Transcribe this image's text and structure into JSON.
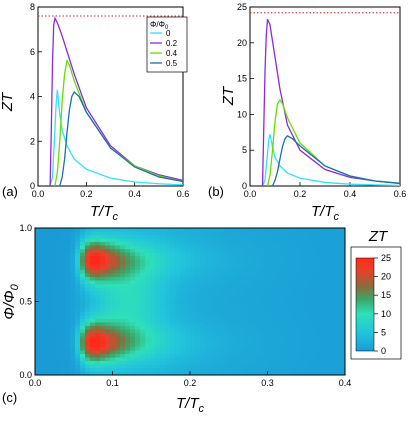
{
  "chart_data": [
    {
      "panel": "(a)",
      "type": "line",
      "ylabel": "ZT",
      "xlabel": "T/T",
      "xlabel_sub": "c",
      "xlim": [
        0,
        0.6
      ],
      "ylim": [
        0,
        8
      ],
      "xticks": [
        "0.0",
        "0.2",
        "0.4",
        "0.6"
      ],
      "yticks": [
        "0",
        "2",
        "4",
        "6",
        "8"
      ],
      "reference_line": {
        "y": 7.6,
        "color": "#d62728",
        "style": "dotted"
      },
      "legend": {
        "title": "Φ/Φ",
        "title_sub": "0",
        "placement": "top-right"
      },
      "series": [
        {
          "name": "0",
          "color": "#33e0ff",
          "x": [
            0.05,
            0.06,
            0.07,
            0.075,
            0.08,
            0.09,
            0.1,
            0.12,
            0.15,
            0.2,
            0.3,
            0.4,
            0.5,
            0.6
          ],
          "y": [
            0,
            0.4,
            2.5,
            3.7,
            4.3,
            3.2,
            2.5,
            1.8,
            1.2,
            0.75,
            0.35,
            0.18,
            0.1,
            0.05
          ]
        },
        {
          "name": "0.2",
          "color": "#8a2be2",
          "x": [
            0.05,
            0.055,
            0.06,
            0.065,
            0.07,
            0.08,
            0.1,
            0.15,
            0.2,
            0.3,
            0.4,
            0.5,
            0.6
          ],
          "y": [
            0,
            2.5,
            5.5,
            7.2,
            7.5,
            7.3,
            6.7,
            5.0,
            3.5,
            1.8,
            0.9,
            0.5,
            0.25
          ]
        },
        {
          "name": "0.4",
          "color": "#66dd00",
          "x": [
            0.07,
            0.08,
            0.09,
            0.1,
            0.11,
            0.12,
            0.13,
            0.15,
            0.2,
            0.3,
            0.4,
            0.5,
            0.6
          ],
          "y": [
            0,
            0.6,
            2.0,
            3.8,
            5.0,
            5.6,
            5.4,
            4.7,
            3.3,
            1.7,
            0.9,
            0.45,
            0.2
          ]
        },
        {
          "name": "0.5",
          "color": "#1a6fb0",
          "x": [
            0.09,
            0.1,
            0.11,
            0.12,
            0.13,
            0.14,
            0.15,
            0.17,
            0.2,
            0.3,
            0.4,
            0.5,
            0.6
          ],
          "y": [
            0,
            0.4,
            1.2,
            2.4,
            3.4,
            4.0,
            4.2,
            4.0,
            3.3,
            1.7,
            0.85,
            0.4,
            0.2
          ]
        }
      ]
    },
    {
      "panel": "(b)",
      "type": "line",
      "ylabel": "ZT",
      "xlabel": "T/T",
      "xlabel_sub": "c",
      "xlim": [
        0,
        0.6
      ],
      "ylim": [
        0,
        25
      ],
      "xticks": [
        "0.0",
        "0.2",
        "0.4",
        "0.6"
      ],
      "yticks": [
        "0",
        "5",
        "10",
        "15",
        "20",
        "25"
      ],
      "reference_line": {
        "y": 24.2,
        "color": "#d62728",
        "style": "dotted"
      },
      "series": [
        {
          "name": "0",
          "color": "#33e0ff",
          "x": [
            0.05,
            0.06,
            0.07,
            0.075,
            0.08,
            0.09,
            0.1,
            0.12,
            0.15,
            0.2,
            0.3,
            0.4,
            0.5,
            0.6
          ],
          "y": [
            0,
            0.8,
            4.5,
            6.5,
            7.2,
            5.5,
            4.0,
            2.8,
            1.8,
            1.1,
            0.5,
            0.25,
            0.15,
            0.08
          ]
        },
        {
          "name": "0.2",
          "color": "#8a2be2",
          "x": [
            0.05,
            0.055,
            0.06,
            0.065,
            0.07,
            0.08,
            0.1,
            0.12,
            0.15,
            0.2,
            0.3,
            0.4,
            0.5,
            0.6
          ],
          "y": [
            0,
            8,
            16,
            21,
            23.3,
            22.5,
            18,
            13.5,
            8.5,
            5.0,
            2.3,
            1.2,
            0.7,
            0.4
          ]
        },
        {
          "name": "0.4",
          "color": "#66dd00",
          "x": [
            0.07,
            0.08,
            0.09,
            0.1,
            0.11,
            0.12,
            0.13,
            0.15,
            0.2,
            0.3,
            0.4,
            0.5,
            0.6
          ],
          "y": [
            0,
            1.5,
            5.0,
            9.0,
            11.5,
            12.0,
            11.5,
            9.5,
            6.0,
            2.8,
            1.4,
            0.7,
            0.35
          ]
        },
        {
          "name": "0.5",
          "color": "#1a6fb0",
          "x": [
            0.09,
            0.1,
            0.11,
            0.12,
            0.13,
            0.14,
            0.15,
            0.17,
            0.2,
            0.3,
            0.4,
            0.5,
            0.6
          ],
          "y": [
            0,
            0.8,
            2.0,
            3.8,
            5.5,
            6.6,
            7.0,
            6.6,
            5.6,
            2.8,
            1.4,
            0.7,
            0.35
          ]
        }
      ]
    },
    {
      "panel": "(c)",
      "type": "heatmap",
      "ylabel": "Φ/Φ",
      "ylabel_sub": "0",
      "xlabel": "T/T",
      "xlabel_sub": "c",
      "xlim": [
        0,
        0.4
      ],
      "ylim": [
        0,
        1
      ],
      "xticks": [
        "0.0",
        "0.1",
        "0.2",
        "0.3",
        "0.4"
      ],
      "yticks": [
        "0.0",
        "0.5",
        "1.0"
      ],
      "colorbar": {
        "label": "ZT",
        "range": [
          0,
          25
        ],
        "ticks": [
          "0",
          "5",
          "10",
          "15",
          "20",
          "25"
        ],
        "placement": "right"
      },
      "peaks": [
        {
          "x": 0.08,
          "y": 0.22,
          "value": 24
        },
        {
          "x": 0.08,
          "y": 0.78,
          "value": 24
        }
      ]
    }
  ]
}
